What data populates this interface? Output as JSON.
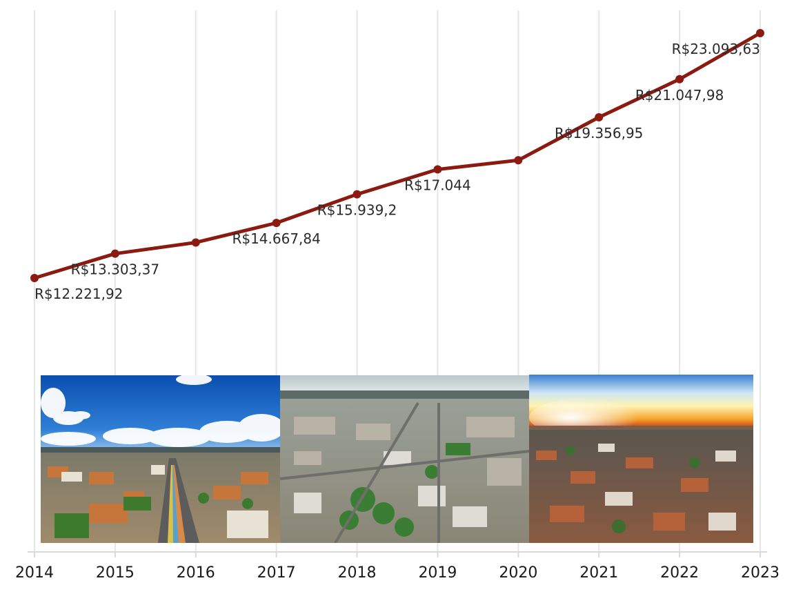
{
  "chart_data": {
    "type": "line",
    "title": "",
    "xlabel": "",
    "ylabel": "",
    "x": [
      "2014",
      "2015",
      "2016",
      "2017",
      "2018",
      "2019",
      "2020",
      "2021",
      "2022",
      "2023"
    ],
    "series": [
      {
        "values": [
          12221.92,
          13303.37,
          13800,
          14667.84,
          15939.2,
          17044,
          17450,
          19356.95,
          21047.98,
          23093.63
        ]
      }
    ],
    "data_labels": [
      "R$12.221,92",
      "R$13.303,37",
      "",
      "R$14.667,84",
      "R$15.939,2",
      "R$17.044",
      "",
      "R$19.356,95",
      "R$21.047,98",
      "R$23.093,63"
    ],
    "ylim": [
      5000,
      24000
    ],
    "grid": "vertical",
    "line_color": "#8b1a10",
    "grid_color": "#e6e6e6"
  },
  "photos": [
    {
      "name": "avenue-aerial-photo",
      "description": "aerial-city-avenue"
    },
    {
      "name": "city-center-aerial-photo",
      "description": "aerial-city-center"
    },
    {
      "name": "sunset-city-photo",
      "description": "city-at-sunset"
    }
  ]
}
